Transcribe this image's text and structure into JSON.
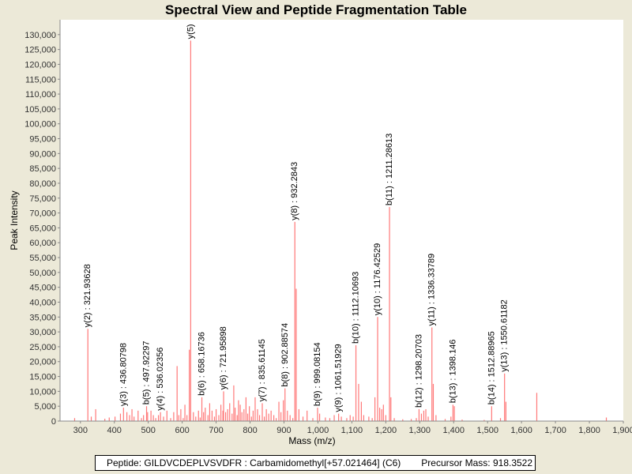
{
  "chart_data": {
    "type": "bar",
    "title": "Spectral View and Peptide Fragmentation Table",
    "xlabel": "Mass (m/z)",
    "ylabel": "Peak Intensity",
    "xlim": [
      240,
      1900
    ],
    "ylim": [
      0,
      135000
    ],
    "grid": false,
    "color": "#ff7878",
    "x_ticks": [
      300,
      400,
      500,
      600,
      700,
      800,
      900,
      1000,
      1100,
      1200,
      1300,
      1400,
      1500,
      1600,
      1700,
      1800,
      1900
    ],
    "x_tick_labels": [
      "300",
      "400",
      "500",
      "600",
      "700",
      "800",
      "900",
      "1,000",
      "1,100",
      "1,200",
      "1,300",
      "1,400",
      "1,500",
      "1,600",
      "1,700",
      "1,800",
      "1,900"
    ],
    "y_ticks": [
      0,
      5000,
      10000,
      15000,
      20000,
      25000,
      30000,
      35000,
      40000,
      45000,
      50000,
      55000,
      60000,
      65000,
      70000,
      75000,
      80000,
      85000,
      90000,
      95000,
      100000,
      105000,
      110000,
      115000,
      120000,
      125000,
      130000
    ],
    "y_tick_labels": [
      "0",
      "5,000",
      "10,000",
      "15,000",
      "20,000",
      "25,000",
      "30,000",
      "35,000",
      "40,000",
      "45,000",
      "50,000",
      "55,000",
      "60,000",
      "65,000",
      "70,000",
      "75,000",
      "80,000",
      "85,000",
      "90,000",
      "95,000",
      "100,000",
      "105,000",
      "110,000",
      "115,000",
      "120,000",
      "125,000",
      "130,000"
    ],
    "peaks": [
      {
        "x": 283,
        "y": 1000
      },
      {
        "x": 322,
        "y": 31000
      },
      {
        "x": 332,
        "y": 1500
      },
      {
        "x": 345,
        "y": 4000
      },
      {
        "x": 372,
        "y": 800
      },
      {
        "x": 385,
        "y": 1200
      },
      {
        "x": 402,
        "y": 1500
      },
      {
        "x": 418,
        "y": 2500
      },
      {
        "x": 427,
        "y": 4500
      },
      {
        "x": 437,
        "y": 3000
      },
      {
        "x": 445,
        "y": 2000
      },
      {
        "x": 452,
        "y": 4000
      },
      {
        "x": 458,
        "y": 1500
      },
      {
        "x": 470,
        "y": 3500
      },
      {
        "x": 480,
        "y": 1000
      },
      {
        "x": 486,
        "y": 2000
      },
      {
        "x": 495,
        "y": 5000
      },
      {
        "x": 498,
        "y": 3000
      },
      {
        "x": 508,
        "y": 3500
      },
      {
        "x": 515,
        "y": 2000
      },
      {
        "x": 522,
        "y": 1000
      },
      {
        "x": 530,
        "y": 2000
      },
      {
        "x": 536,
        "y": 3000
      },
      {
        "x": 545,
        "y": 1500
      },
      {
        "x": 555,
        "y": 3500
      },
      {
        "x": 566,
        "y": 1000
      },
      {
        "x": 575,
        "y": 3000
      },
      {
        "x": 585,
        "y": 18500
      },
      {
        "x": 590,
        "y": 2000
      },
      {
        "x": 596,
        "y": 4000
      },
      {
        "x": 603,
        "y": 1000
      },
      {
        "x": 608,
        "y": 5500
      },
      {
        "x": 614,
        "y": 2000
      },
      {
        "x": 621,
        "y": 24000
      },
      {
        "x": 625,
        "y": 128000
      },
      {
        "x": 633,
        "y": 3000
      },
      {
        "x": 640,
        "y": 1500
      },
      {
        "x": 648,
        "y": 3500
      },
      {
        "x": 653,
        "y": 1200
      },
      {
        "x": 658,
        "y": 8000
      },
      {
        "x": 663,
        "y": 3000
      },
      {
        "x": 668,
        "y": 4500
      },
      {
        "x": 676,
        "y": 2000
      },
      {
        "x": 681,
        "y": 6000
      },
      {
        "x": 688,
        "y": 3500
      },
      {
        "x": 695,
        "y": 1500
      },
      {
        "x": 700,
        "y": 4000
      },
      {
        "x": 708,
        "y": 2000
      },
      {
        "x": 714,
        "y": 5500
      },
      {
        "x": 720,
        "y": 3500
      },
      {
        "x": 722,
        "y": 10000
      },
      {
        "x": 728,
        "y": 3000
      },
      {
        "x": 734,
        "y": 4000
      },
      {
        "x": 740,
        "y": 6000
      },
      {
        "x": 747,
        "y": 2500
      },
      {
        "x": 752,
        "y": 12000
      },
      {
        "x": 756,
        "y": 4500
      },
      {
        "x": 762,
        "y": 2000
      },
      {
        "x": 766,
        "y": 7000
      },
      {
        "x": 771,
        "y": 5500
      },
      {
        "x": 776,
        "y": 3000
      },
      {
        "x": 782,
        "y": 4000
      },
      {
        "x": 788,
        "y": 8000
      },
      {
        "x": 793,
        "y": 2500
      },
      {
        "x": 798,
        "y": 5000
      },
      {
        "x": 804,
        "y": 1500
      },
      {
        "x": 809,
        "y": 3500
      },
      {
        "x": 815,
        "y": 8000
      },
      {
        "x": 822,
        "y": 4000
      },
      {
        "x": 828,
        "y": 2000
      },
      {
        "x": 836,
        "y": 6000
      },
      {
        "x": 842,
        "y": 1500
      },
      {
        "x": 848,
        "y": 4000
      },
      {
        "x": 855,
        "y": 2500
      },
      {
        "x": 862,
        "y": 3500
      },
      {
        "x": 870,
        "y": 2000
      },
      {
        "x": 877,
        "y": 1000
      },
      {
        "x": 885,
        "y": 6500
      },
      {
        "x": 891,
        "y": 3000
      },
      {
        "x": 898,
        "y": 7000
      },
      {
        "x": 903,
        "y": 11000
      },
      {
        "x": 910,
        "y": 3500
      },
      {
        "x": 918,
        "y": 2000
      },
      {
        "x": 926,
        "y": 1000
      },
      {
        "x": 932,
        "y": 67000
      },
      {
        "x": 936,
        "y": 44500
      },
      {
        "x": 944,
        "y": 4000
      },
      {
        "x": 956,
        "y": 1500
      },
      {
        "x": 968,
        "y": 3500
      },
      {
        "x": 985,
        "y": 1000
      },
      {
        "x": 999,
        "y": 4500
      },
      {
        "x": 1005,
        "y": 2500
      },
      {
        "x": 1022,
        "y": 1200
      },
      {
        "x": 1035,
        "y": 1000
      },
      {
        "x": 1048,
        "y": 2000
      },
      {
        "x": 1061,
        "y": 2500
      },
      {
        "x": 1069,
        "y": 1500
      },
      {
        "x": 1085,
        "y": 1000
      },
      {
        "x": 1095,
        "y": 2000
      },
      {
        "x": 1104,
        "y": 1500
      },
      {
        "x": 1112,
        "y": 25500
      },
      {
        "x": 1120,
        "y": 12500
      },
      {
        "x": 1128,
        "y": 6500
      },
      {
        "x": 1135,
        "y": 2000
      },
      {
        "x": 1150,
        "y": 1500
      },
      {
        "x": 1160,
        "y": 1000
      },
      {
        "x": 1168,
        "y": 8000
      },
      {
        "x": 1176,
        "y": 35000
      },
      {
        "x": 1182,
        "y": 4500
      },
      {
        "x": 1188,
        "y": 4000
      },
      {
        "x": 1193,
        "y": 5500
      },
      {
        "x": 1200,
        "y": 2000
      },
      {
        "x": 1211,
        "y": 72000
      },
      {
        "x": 1215,
        "y": 8000
      },
      {
        "x": 1225,
        "y": 1000
      },
      {
        "x": 1250,
        "y": 600
      },
      {
        "x": 1275,
        "y": 700
      },
      {
        "x": 1290,
        "y": 1000
      },
      {
        "x": 1298,
        "y": 4000
      },
      {
        "x": 1305,
        "y": 2500
      },
      {
        "x": 1312,
        "y": 3500
      },
      {
        "x": 1318,
        "y": 4000
      },
      {
        "x": 1325,
        "y": 1500
      },
      {
        "x": 1336,
        "y": 31500
      },
      {
        "x": 1340,
        "y": 12500
      },
      {
        "x": 1348,
        "y": 2000
      },
      {
        "x": 1375,
        "y": 700
      },
      {
        "x": 1392,
        "y": 1500
      },
      {
        "x": 1398,
        "y": 5500
      },
      {
        "x": 1402,
        "y": 5000
      },
      {
        "x": 1425,
        "y": 500
      },
      {
        "x": 1490,
        "y": 400
      },
      {
        "x": 1512,
        "y": 5000
      },
      {
        "x": 1538,
        "y": 1000
      },
      {
        "x": 1550,
        "y": 16000
      },
      {
        "x": 1554,
        "y": 6500
      },
      {
        "x": 1645,
        "y": 9500
      },
      {
        "x": 1850,
        "y": 1200
      }
    ],
    "annotations": [
      {
        "label": "y(2) : 321.93628",
        "x": 322,
        "y": 31000
      },
      {
        "label": "y(3) : 436.80798",
        "x": 427,
        "y": 4500
      },
      {
        "label": "b(5) : 497.92297",
        "x": 495,
        "y": 5000
      },
      {
        "label": "y(4) : 536.02356",
        "x": 536,
        "y": 3000
      },
      {
        "label": "y(5)",
        "x": 625,
        "y": 128000
      },
      {
        "label": "b(6) : 658.16736",
        "x": 658,
        "y": 8000
      },
      {
        "label": "y(6) : 721.95898",
        "x": 722,
        "y": 10000
      },
      {
        "label": "y(7) : 835.61145",
        "x": 836,
        "y": 6000
      },
      {
        "label": "b(8) : 902.88574",
        "x": 903,
        "y": 11000
      },
      {
        "label": "y(8) : 932.2843",
        "x": 932,
        "y": 67000
      },
      {
        "label": "b(9) : 999.08154",
        "x": 999,
        "y": 4500
      },
      {
        "label": "y(9) : 1061.51929",
        "x": 1061,
        "y": 2500
      },
      {
        "label": "b(10) : 1112.10693",
        "x": 1112,
        "y": 25500
      },
      {
        "label": "y(10) : 1176.42529",
        "x": 1176,
        "y": 35000
      },
      {
        "label": "b(11) : 1211.28613",
        "x": 1211,
        "y": 72000
      },
      {
        "label": "b(12) : 1298.20703",
        "x": 1298,
        "y": 4000
      },
      {
        "label": "y(11) : 1336.33789",
        "x": 1336,
        "y": 31500
      },
      {
        "label": "b(13) : 1398.146",
        "x": 1398,
        "y": 5500
      },
      {
        "label": "b(14) : 1512.88965",
        "x": 1512,
        "y": 5000
      },
      {
        "label": "y(13) : 1550.61182",
        "x": 1550,
        "y": 16000
      }
    ]
  },
  "footer": {
    "peptide": "Peptide: GILDVCDEPLVSVDFR : Carbamidomethyl[+57.021464] (C6)",
    "precursor": "Precursor Mass: 918.3522"
  }
}
